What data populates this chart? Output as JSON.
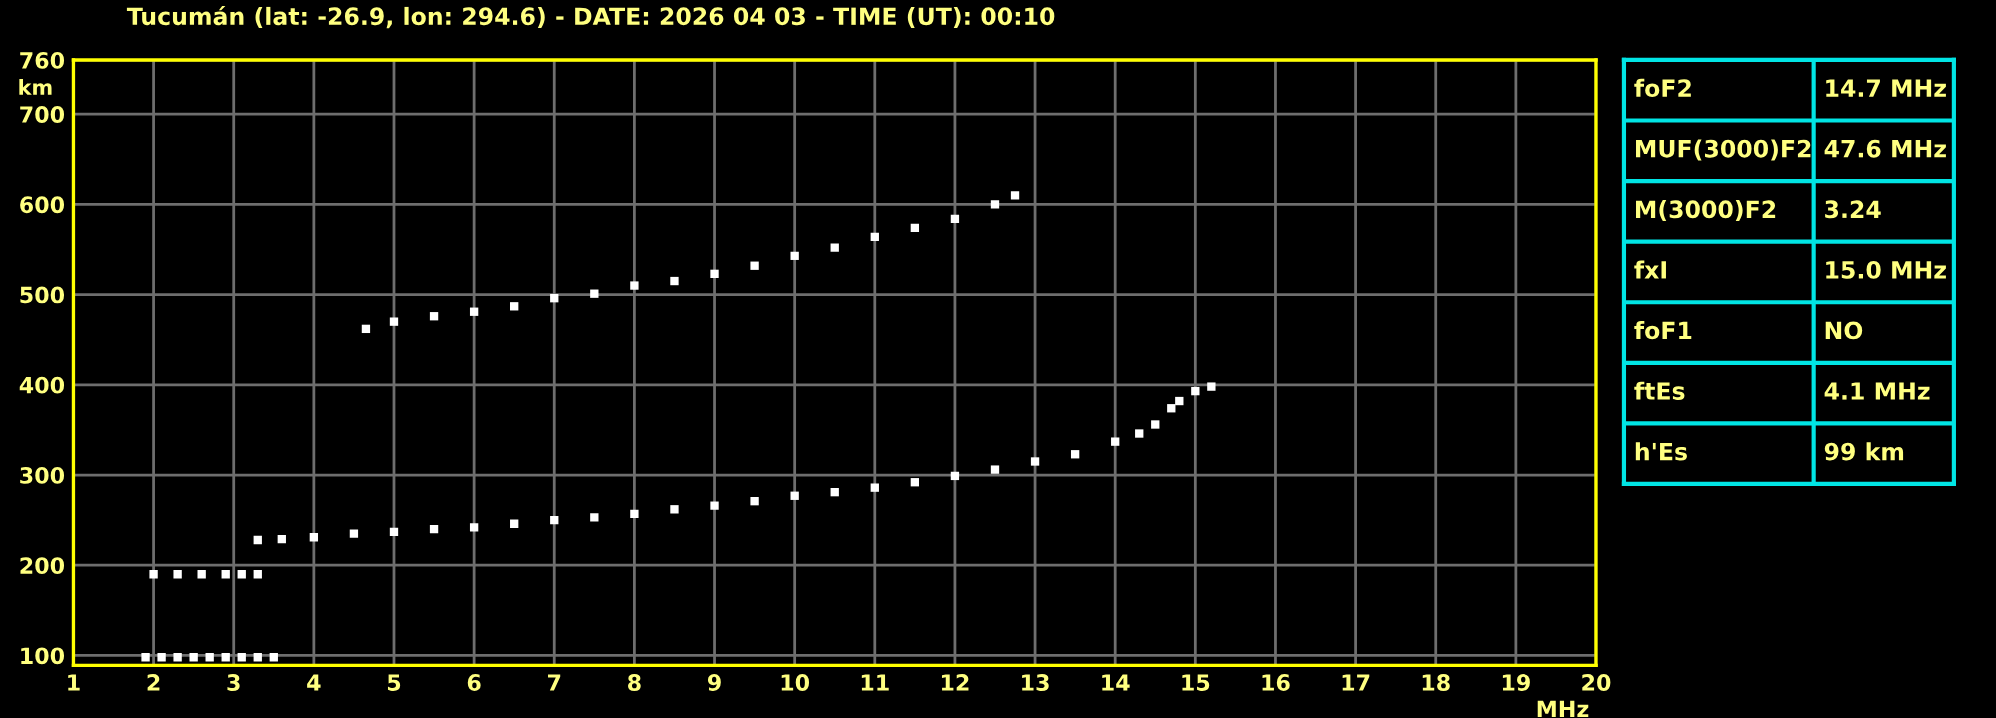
{
  "chart_data": [
    {
      "type": "scatter",
      "title": "Tucumán (lat: -26.9, lon: 294.6) - DATE: 2026 04 03 - TIME (UT): 00:10",
      "xlabel": "MHz",
      "ylabel": "km",
      "xlim": [
        1,
        20
      ],
      "ylim": [
        89,
        760
      ],
      "xticks": [
        1,
        2,
        3,
        4,
        5,
        6,
        7,
        8,
        9,
        10,
        11,
        12,
        13,
        14,
        15,
        16,
        17,
        18,
        19,
        20
      ],
      "yticks": [
        100,
        200,
        300,
        400,
        500,
        600,
        700,
        760
      ],
      "grid": true,
      "marker": "square",
      "series": [
        {
          "color": "#ffffff",
          "x": [
            1.9,
            2.1,
            2.3,
            2.5,
            2.7,
            2.9,
            3.1,
            3.3,
            3.5
          ],
          "values": [
            98,
            98,
            98,
            98,
            98,
            98,
            98,
            98,
            98
          ]
        },
        {
          "color": "#ffffff",
          "x": [
            2.0,
            2.3,
            2.6,
            2.9,
            3.1,
            3.3
          ],
          "values": [
            190,
            190,
            190,
            190,
            190,
            190
          ]
        },
        {
          "color": "#ffffff",
          "x": [
            3.3,
            3.6,
            4,
            4.5,
            5,
            5.5,
            6,
            6.5,
            7,
            7.5,
            8,
            8.5,
            9,
            9.5,
            10,
            10.5,
            11,
            11.5,
            12,
            12.5,
            13,
            13.5,
            14,
            14.3,
            14.5,
            14.7,
            14.8,
            15.0,
            15.2
          ],
          "values": [
            228,
            229,
            231,
            235,
            237,
            240,
            242,
            246,
            250,
            253,
            257,
            262,
            266,
            271,
            277,
            281,
            286,
            292,
            299,
            306,
            315,
            323,
            337,
            346,
            356,
            374,
            382,
            393,
            398
          ]
        },
        {
          "color": "#ffffff",
          "x": [
            4.65,
            5,
            5.5,
            6,
            6.5,
            7,
            7.5,
            8,
            8.5,
            9,
            9.5,
            10,
            10.5,
            11,
            11.5,
            12,
            12.5,
            12.75
          ],
          "values": [
            462,
            470,
            476,
            481,
            487,
            496,
            501,
            510,
            515,
            523,
            532,
            543,
            552,
            564,
            574,
            584,
            600,
            610
          ]
        }
      ]
    },
    {
      "type": "other",
      "annotations": [
        "foF2",
        "14.7 MHz",
        "MUF(3000)F2",
        "47.6 MHz",
        "M(3000)F2",
        "3.24",
        "fxI",
        "15.0 MHz",
        "foF1",
        "NO",
        "ftEs",
        "4.1 MHz",
        "h'Es",
        "99 km"
      ]
    }
  ]
}
